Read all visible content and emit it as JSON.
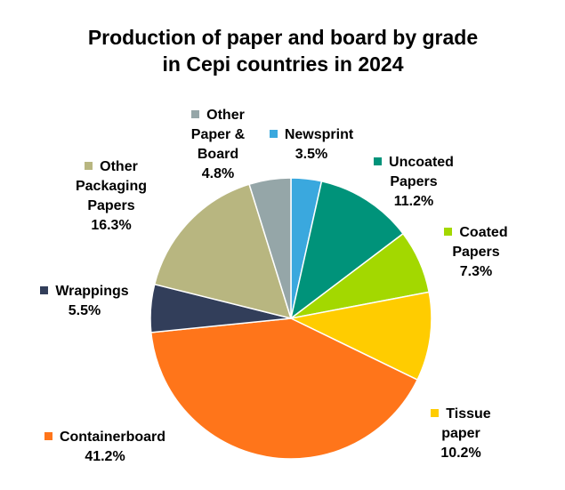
{
  "chart_data": {
    "type": "pie",
    "title": "Production of paper and board by grade in Cepi countries in 2024",
    "categories": [
      "Newsprint",
      "Uncoated Papers",
      "Coated Papers",
      "Tissue paper",
      "Containerboard",
      "Wrappings",
      "Other Packaging Papers",
      "Other Paper & Board"
    ],
    "values": [
      3.5,
      11.2,
      7.3,
      10.2,
      41.2,
      5.5,
      16.3,
      4.8
    ],
    "value_labels": [
      "3.5%",
      "11.2%",
      "7.3%",
      "10.2%",
      "41.2%",
      "5.5%",
      "16.3%",
      "4.8%"
    ],
    "colors": [
      "#3aa8de",
      "#00937a",
      "#a3d800",
      "#ffcc00",
      "#ff751a",
      "#323e5a",
      "#b8b680",
      "#95a6a8"
    ]
  }
}
